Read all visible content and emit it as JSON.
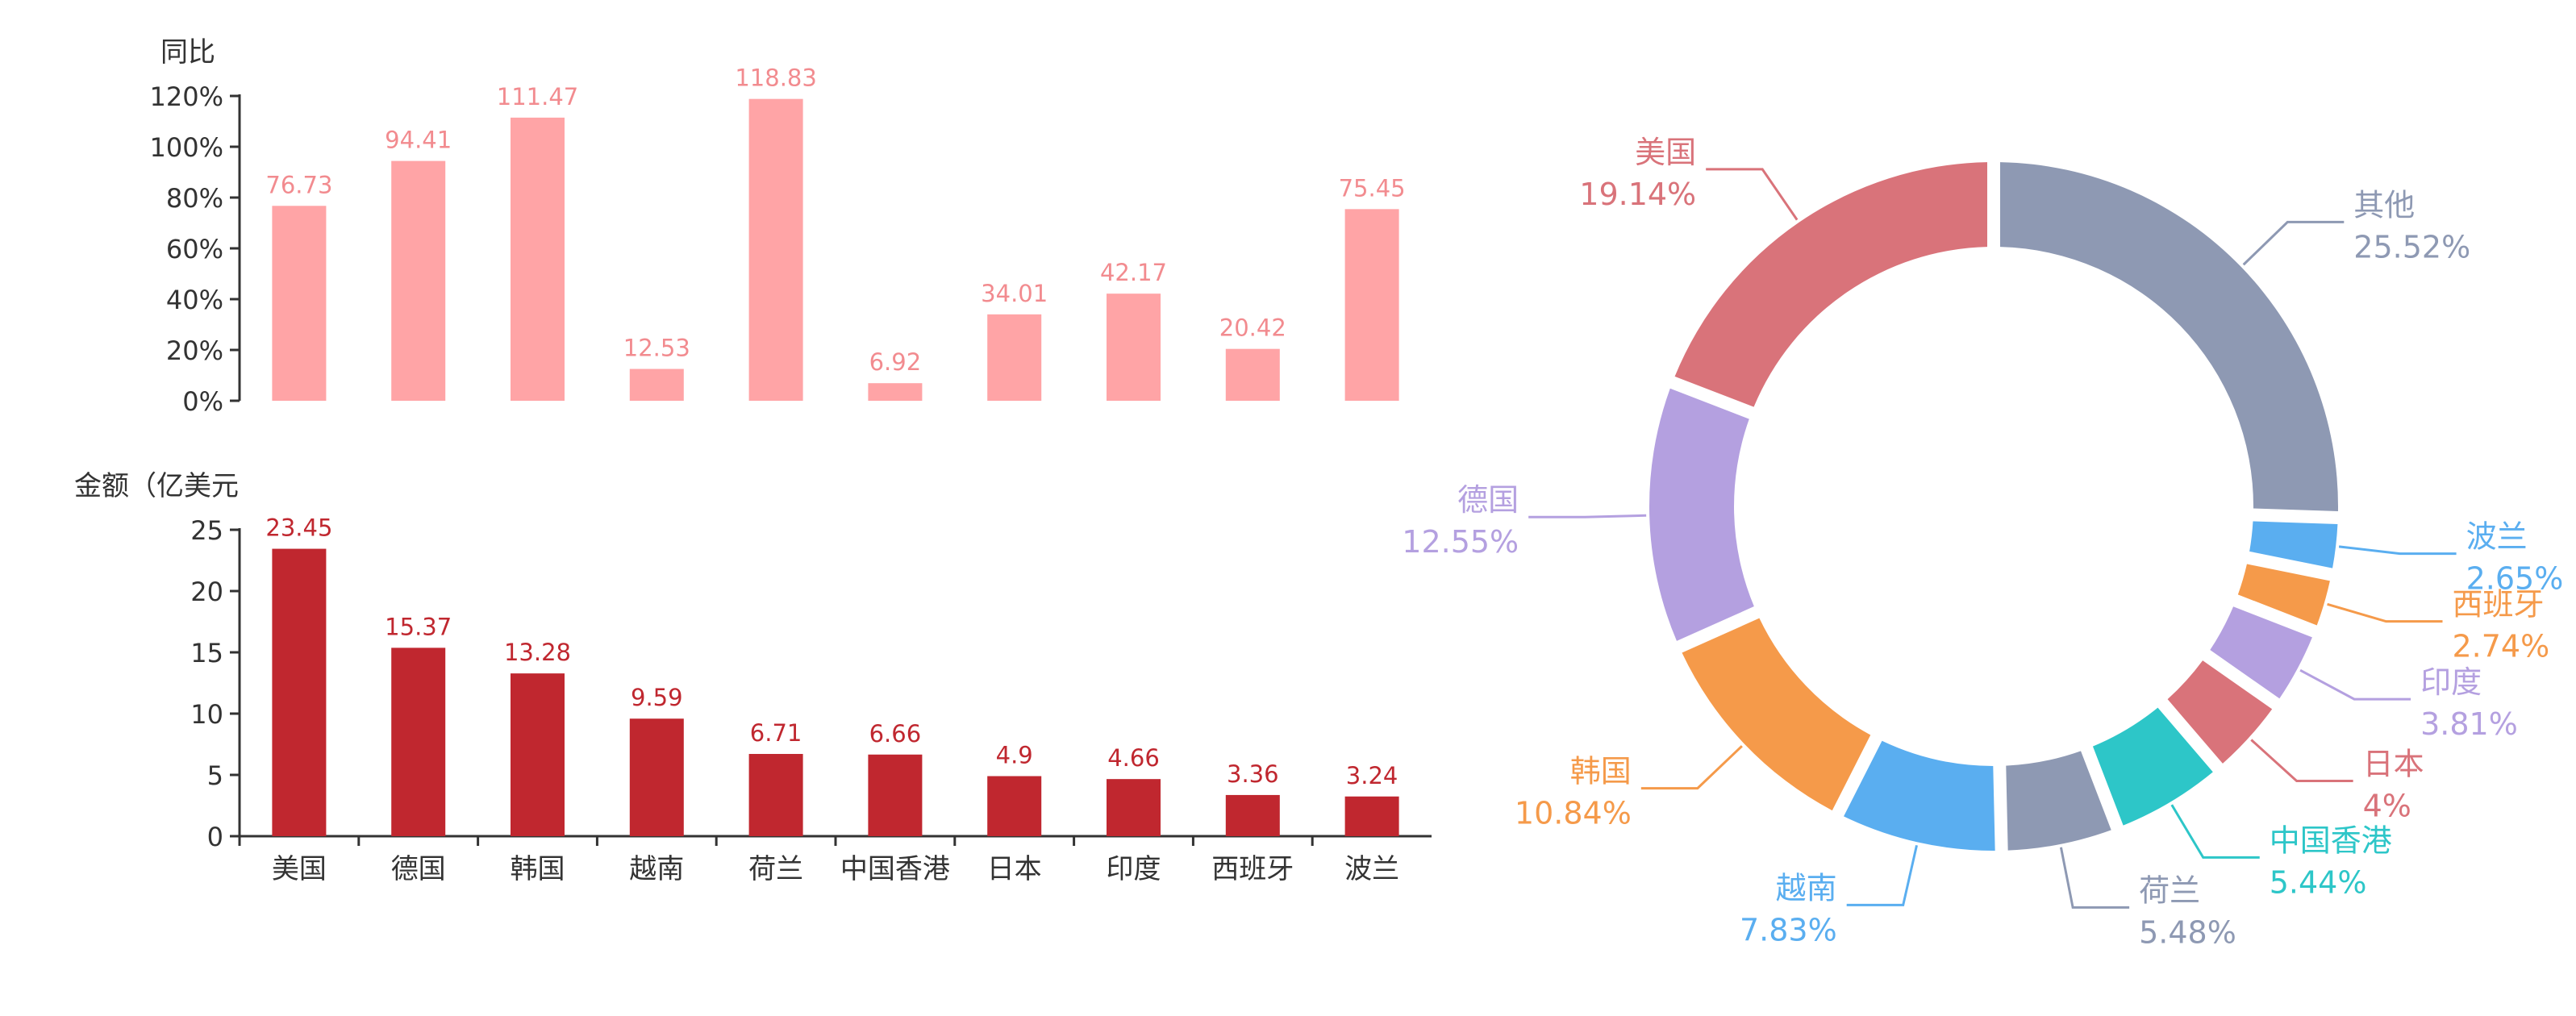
{
  "chart_data": [
    {
      "type": "bar",
      "ylabel": "同比",
      "categories": [
        "美国",
        "德国",
        "韩国",
        "越南",
        "荷兰",
        "中国香港",
        "日本",
        "印度",
        "西班牙",
        "波兰"
      ],
      "values": [
        76.73,
        94.41,
        111.47,
        12.53,
        118.83,
        6.92,
        34.01,
        42.17,
        20.42,
        75.45
      ],
      "data_labels": [
        "76.73",
        "94.41",
        "111.47",
        "12.53",
        "118.83",
        "6.92",
        "34.01",
        "42.17",
        "20.42",
        "75.45"
      ],
      "ylim": [
        0,
        120
      ],
      "ytick_labels": [
        "0%",
        "20%",
        "40%",
        "60%",
        "80%",
        "100%",
        "120%"
      ],
      "color": "#FFA4A6",
      "label_color": "#F28B8F"
    },
    {
      "type": "bar",
      "ylabel": "金额（亿美元",
      "categories": [
        "美国",
        "德国",
        "韩国",
        "越南",
        "荷兰",
        "中国香港",
        "日本",
        "印度",
        "西班牙",
        "波兰"
      ],
      "values": [
        23.45,
        15.37,
        13.28,
        9.59,
        6.71,
        6.66,
        4.9,
        4.66,
        3.36,
        3.24
      ],
      "data_labels": [
        "23.45",
        "15.37",
        "13.28",
        "9.59",
        "6.71",
        "6.66",
        "4.9",
        "4.66",
        "3.36",
        "3.24"
      ],
      "ylim": [
        0,
        25
      ],
      "ytick_labels": [
        "0",
        "5",
        "10",
        "15",
        "20",
        "25"
      ],
      "color": "#C0272F",
      "label_color": "#C0272F"
    },
    {
      "type": "pie",
      "donut": true,
      "slices": [
        {
          "name": "其他",
          "value": 25.52,
          "label": "25.52%",
          "color": "#8E99B3"
        },
        {
          "name": "波兰",
          "value": 2.65,
          "label": "2.65%",
          "color": "#5AAEF0"
        },
        {
          "name": "西班牙",
          "value": 2.74,
          "label": "2.74%",
          "color": "#F59A4A"
        },
        {
          "name": "印度",
          "value": 3.81,
          "label": "3.81%",
          "color": "#B4A0E0"
        },
        {
          "name": "日本",
          "value": 4,
          "label": "4%",
          "color": "#D9737A"
        },
        {
          "name": "中国香港",
          "value": 5.44,
          "label": "5.44%",
          "color": "#2DC6C8"
        },
        {
          "name": "荷兰",
          "value": 5.48,
          "label": "5.48%",
          "color": "#8E99B3"
        },
        {
          "name": "越南",
          "value": 7.83,
          "label": "7.83%",
          "color": "#5AAEF0"
        },
        {
          "name": "韩国",
          "value": 10.84,
          "label": "10.84%",
          "color": "#F59A4A"
        },
        {
          "name": "德国",
          "value": 12.55,
          "label": "12.55%",
          "color": "#B4A0E0"
        },
        {
          "name": "美国",
          "value": 19.14,
          "label": "19.14%",
          "color": "#D9737A"
        }
      ]
    }
  ]
}
